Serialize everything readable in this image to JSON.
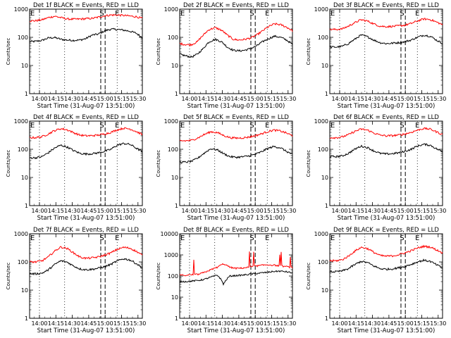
{
  "chart_data": [
    {
      "type": "line",
      "title": "Det 1f BLACK = Events, RED = LLD",
      "xlabel": "Start Time (31-Aug-07 13:51:00)",
      "ylabel": "Counts/sec",
      "yscale": "log",
      "ylim": [
        1,
        1000
      ],
      "x_ticks": [
        "14:00",
        "14:15",
        "14:30",
        "14:45",
        "15:00",
        "15:15",
        "15:30"
      ],
      "y_ticks": [
        "1",
        "10",
        "100",
        "1000"
      ],
      "markers": [
        "E",
        "S",
        "E"
      ],
      "series": [
        {
          "color": "#000000",
          "role": "Events",
          "profile": [
            70,
            72,
            78,
            95,
            98,
            85,
            80,
            78,
            80,
            90,
            120,
            130,
            170,
            195,
            190,
            180,
            165,
            140,
            95
          ]
        },
        {
          "color": "#ff0000",
          "role": "LLD",
          "profile": [
            380,
            390,
            420,
            500,
            560,
            500,
            450,
            440,
            445,
            460,
            470,
            520,
            580,
            620,
            620,
            600,
            570,
            540,
            470
          ]
        }
      ]
    },
    {
      "type": "line",
      "title": "Det 2f BLACK = Events, RED = LLD",
      "xlabel": "Start Time (31-Aug-07 13:51:00)",
      "ylabel": "Counts/sec",
      "yscale": "log",
      "ylim": [
        1,
        1000
      ],
      "x_ticks": [
        "14:00",
        "14:15",
        "14:30",
        "14:45",
        "15:00",
        "15:15",
        "15:30"
      ],
      "y_ticks": [
        "1",
        "10",
        "100",
        "1000"
      ],
      "markers": [
        "E",
        "S",
        "E"
      ],
      "series": [
        {
          "color": "#000000",
          "role": "Events",
          "profile": [
            25,
            22,
            20,
            25,
            40,
            70,
            85,
            70,
            45,
            35,
            33,
            35,
            40,
            50,
            70,
            90,
            110,
            100,
            80,
            55
          ]
        },
        {
          "color": "#ff0000",
          "role": "LLD",
          "profile": [
            60,
            55,
            55,
            70,
            120,
            190,
            220,
            180,
            120,
            85,
            80,
            85,
            95,
            120,
            170,
            240,
            300,
            280,
            230,
            170
          ]
        }
      ]
    },
    {
      "type": "line",
      "title": "Det 3f BLACK = Events, RED = LLD",
      "xlabel": "Start Time (31-Aug-07 13:51:00)",
      "ylabel": "Counts/sec",
      "yscale": "log",
      "ylim": [
        1,
        1000
      ],
      "x_ticks": [
        "14:00",
        "14:15",
        "14:30",
        "14:45",
        "15:00",
        "15:15",
        "15:30"
      ],
      "y_ticks": [
        "1",
        "10",
        "100",
        "1000"
      ],
      "markers": [
        "E",
        "S",
        "E"
      ],
      "series": [
        {
          "color": "#000000",
          "role": "Events",
          "profile": [
            45,
            45,
            48,
            60,
            85,
            120,
            105,
            80,
            65,
            60,
            62,
            65,
            70,
            80,
            100,
            120,
            110,
            80,
            60
          ]
        },
        {
          "color": "#ff0000",
          "role": "LLD",
          "profile": [
            190,
            190,
            200,
            250,
            330,
            420,
            380,
            300,
            250,
            240,
            245,
            255,
            270,
            310,
            380,
            450,
            430,
            350,
            280
          ]
        }
      ]
    },
    {
      "type": "line",
      "title": "Det 4f BLACK = Events, RED = LLD",
      "xlabel": "Start Time (31-Aug-07 13:51:00)",
      "ylabel": "Counts/sec",
      "yscale": "log",
      "ylim": [
        1,
        1000
      ],
      "x_ticks": [
        "14:00",
        "14:15",
        "14:30",
        "14:45",
        "15:00",
        "15:15",
        "15:30"
      ],
      "y_ticks": [
        "1",
        "10",
        "100",
        "1000"
      ],
      "markers": [
        "E",
        "S",
        "E"
      ],
      "series": [
        {
          "color": "#000000",
          "role": "Events",
          "profile": [
            50,
            50,
            55,
            75,
            110,
            140,
            120,
            90,
            72,
            68,
            70,
            75,
            85,
            100,
            140,
            160,
            150,
            110,
            80
          ]
        },
        {
          "color": "#ff0000",
          "role": "LLD",
          "profile": [
            260,
            260,
            280,
            350,
            460,
            540,
            490,
            390,
            320,
            300,
            305,
            320,
            350,
            400,
            490,
            560,
            530,
            430,
            330
          ]
        }
      ]
    },
    {
      "type": "line",
      "title": "Det 5f BLACK = Events, RED = LLD",
      "xlabel": "Start Time (31-Aug-07 13:51:00)",
      "ylabel": "Counts/sec",
      "yscale": "log",
      "ylim": [
        1,
        1000
      ],
      "x_ticks": [
        "14:00",
        "14:15",
        "14:30",
        "14:45",
        "15:00",
        "15:15",
        "15:30"
      ],
      "y_ticks": [
        "1",
        "10",
        "100",
        "1000"
      ],
      "markers": [
        "E",
        "S",
        "E"
      ],
      "series": [
        {
          "color": "#000000",
          "role": "Events",
          "profile": [
            35,
            35,
            38,
            50,
            75,
            105,
            95,
            70,
            55,
            52,
            54,
            58,
            65,
            80,
            105,
            125,
            115,
            85,
            65
          ]
        },
        {
          "color": "#ff0000",
          "role": "LLD",
          "profile": [
            200,
            200,
            210,
            260,
            340,
            420,
            390,
            310,
            260,
            250,
            255,
            270,
            300,
            350,
            420,
            480,
            450,
            380,
            300
          ]
        }
      ]
    },
    {
      "type": "line",
      "title": "Det 6f BLACK = Events, RED = LLD",
      "xlabel": "Start Time (31-Aug-07 13:51:00)",
      "ylabel": "Counts/sec",
      "yscale": "log",
      "ylim": [
        1,
        1000
      ],
      "x_ticks": [
        "14:00",
        "14:15",
        "14:30",
        "14:45",
        "15:00",
        "15:15",
        "15:30"
      ],
      "y_ticks": [
        "1",
        "10",
        "100",
        "1000"
      ],
      "markers": [
        "E",
        "S",
        "E"
      ],
      "series": [
        {
          "color": "#000000",
          "role": "Events",
          "profile": [
            55,
            55,
            58,
            72,
            100,
            130,
            115,
            88,
            72,
            68,
            70,
            75,
            85,
            100,
            130,
            150,
            140,
            105,
            80
          ]
        },
        {
          "color": "#ff0000",
          "role": "LLD",
          "profile": [
            260,
            260,
            275,
            330,
            430,
            520,
            480,
            380,
            320,
            300,
            305,
            320,
            350,
            400,
            480,
            550,
            520,
            420,
            330
          ]
        }
      ]
    },
    {
      "type": "line",
      "title": "Det 7f BLACK = Events, RED = LLD",
      "xlabel": "Start Time (31-Aug-07 13:51:00)",
      "ylabel": "Counts/sec",
      "yscale": "log",
      "ylim": [
        1,
        1000
      ],
      "x_ticks": [
        "14:00",
        "14:15",
        "14:30",
        "14:45",
        "15:00",
        "15:15",
        "15:30"
      ],
      "y_ticks": [
        "1",
        "10",
        "100",
        "1000"
      ],
      "markers": [
        "E",
        "S",
        "E"
      ],
      "series": [
        {
          "color": "#000000",
          "role": "Events",
          "profile": [
            38,
            38,
            40,
            52,
            80,
            110,
            98,
            72,
            57,
            53,
            55,
            60,
            68,
            82,
            108,
            130,
            118,
            88,
            60
          ]
        },
        {
          "color": "#ff0000",
          "role": "LLD",
          "profile": [
            100,
            100,
            110,
            150,
            240,
            340,
            300,
            210,
            150,
            135,
            140,
            150,
            175,
            210,
            280,
            330,
            310,
            240,
            170
          ]
        }
      ]
    },
    {
      "type": "line",
      "title": "Det 8f BLACK = Events, RED = LLD",
      "xlabel": "Start Time (31-Aug-07 13:51:00)",
      "ylabel": "Counts/sec",
      "yscale": "log",
      "ylim": [
        1,
        10000
      ],
      "x_ticks": [
        "14:00",
        "14:15",
        "14:30",
        "14:45",
        "15:00",
        "15:15",
        "15:30"
      ],
      "y_ticks": [
        "1",
        "10",
        "100",
        "1000",
        "10000"
      ],
      "markers": [
        "E",
        "S",
        "E"
      ],
      "series": [
        {
          "color": "#000000",
          "role": "Events",
          "profile": [
            55,
            55,
            58,
            62,
            70,
            90,
            110,
            40,
            100,
            105,
            110,
            120,
            130,
            140,
            150,
            165,
            170,
            160,
            140
          ]
        },
        {
          "color": "#ff0000",
          "role": "LLD",
          "profile": [
            110,
            110,
            115,
            120,
            150,
            200,
            260,
            380,
            260,
            230,
            240,
            260,
            290,
            320,
            340,
            330,
            300,
            280,
            250
          ]
        }
      ]
    },
    {
      "type": "line",
      "title": "Det 9f BLACK = Events, RED = LLD",
      "xlabel": "Start Time (31-Aug-07 13:51:00)",
      "ylabel": "Counts/sec",
      "yscale": "log",
      "ylim": [
        1,
        1000
      ],
      "x_ticks": [
        "14:00",
        "14:15",
        "14:30",
        "14:45",
        "15:00",
        "15:15",
        "15:30"
      ],
      "y_ticks": [
        "1",
        "10",
        "100",
        "1000"
      ],
      "markers": [
        "E",
        "S",
        "E"
      ],
      "series": [
        {
          "color": "#000000",
          "role": "Events",
          "profile": [
            45,
            45,
            48,
            58,
            80,
            105,
            95,
            72,
            58,
            55,
            57,
            62,
            70,
            82,
            100,
            115,
            105,
            80,
            60
          ]
        },
        {
          "color": "#ff0000",
          "role": "LLD",
          "profile": [
            110,
            110,
            120,
            160,
            240,
            330,
            300,
            220,
            170,
            160,
            165,
            180,
            210,
            250,
            310,
            360,
            340,
            270,
            210
          ]
        }
      ]
    }
  ]
}
